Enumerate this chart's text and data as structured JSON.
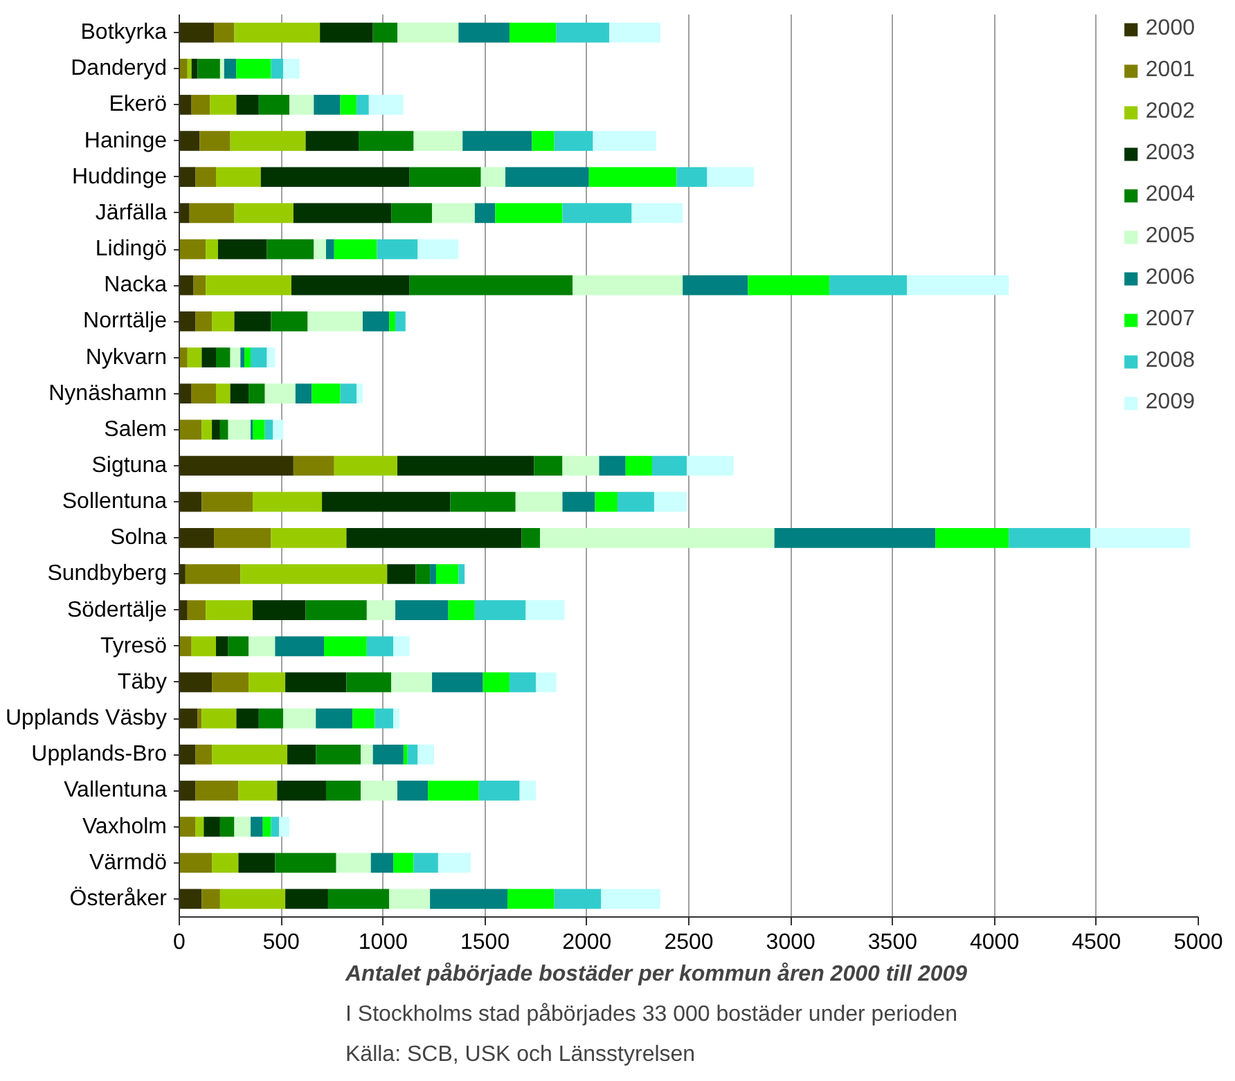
{
  "chart_data": {
    "type": "bar",
    "orientation": "horizontal",
    "stacked": true,
    "title": "Antalet påbörjade bostäder per kommun åren 2000 till 2009",
    "annotations": [
      "I Stockholms stad påbörjades 33 000 bostäder under perioden",
      "Källa: SCB, USK och Länsstyrelsen"
    ],
    "categories": [
      "Botkyrka",
      "Danderyd",
      "Ekerö",
      "Haninge",
      "Huddinge",
      "Järfälla",
      "Lidingö",
      "Nacka",
      "Norrtälje",
      "Nykvarn",
      "Nynäshamn",
      "Salem",
      "Sigtuna",
      "Sollentuna",
      "Solna",
      "Sundbyberg",
      "Södertälje",
      "Tyresö",
      "Täby",
      "Upplands Väsby",
      "Upplands-Bro",
      "Vallentuna",
      "Vaxholm",
      "Värmdö",
      "Österåker"
    ],
    "xlim": [
      0,
      5000
    ],
    "xticks": [
      0,
      500,
      1000,
      1500,
      2000,
      2500,
      3000,
      3500,
      4000,
      4500,
      5000
    ],
    "grid": "x",
    "legend": "top right",
    "series": [
      {
        "name": "2000",
        "color": "#333300",
        "values": [
          170,
          0,
          60,
          100,
          80,
          50,
          0,
          70,
          80,
          0,
          60,
          0,
          560,
          110,
          170,
          30,
          40,
          0,
          160,
          90,
          80,
          80,
          0,
          0,
          110
        ]
      },
      {
        "name": "2001",
        "color": "#808000",
        "values": [
          100,
          40,
          90,
          150,
          100,
          220,
          130,
          60,
          80,
          40,
          120,
          110,
          200,
          250,
          280,
          270,
          90,
          60,
          180,
          20,
          80,
          210,
          80,
          160,
          90
        ]
      },
      {
        "name": "2002",
        "color": "#99cc00",
        "values": [
          420,
          20,
          130,
          370,
          220,
          290,
          60,
          420,
          110,
          70,
          70,
          50,
          310,
          340,
          370,
          720,
          230,
          120,
          180,
          170,
          370,
          190,
          40,
          130,
          320
        ]
      },
      {
        "name": "2003",
        "color": "#003300",
        "values": [
          260,
          30,
          110,
          260,
          730,
          480,
          240,
          580,
          180,
          70,
          90,
          40,
          670,
          630,
          860,
          140,
          260,
          60,
          300,
          110,
          140,
          240,
          80,
          180,
          210
        ]
      },
      {
        "name": "2004",
        "color": "#008000",
        "values": [
          120,
          110,
          150,
          270,
          350,
          200,
          230,
          800,
          180,
          70,
          80,
          40,
          140,
          320,
          90,
          70,
          300,
          100,
          220,
          120,
          220,
          170,
          70,
          300,
          300
        ]
      },
      {
        "name": "2005",
        "color": "#ccffcc",
        "values": [
          300,
          20,
          120,
          240,
          120,
          210,
          60,
          540,
          270,
          50,
          150,
          110,
          180,
          230,
          1150,
          0,
          140,
          130,
          200,
          160,
          60,
          180,
          80,
          170,
          200
        ]
      },
      {
        "name": "2006",
        "color": "#008080",
        "values": [
          250,
          60,
          130,
          340,
          410,
          100,
          40,
          320,
          130,
          20,
          80,
          10,
          130,
          160,
          790,
          30,
          260,
          240,
          250,
          180,
          150,
          150,
          60,
          110,
          380
        ]
      },
      {
        "name": "2007",
        "color": "#00ff00",
        "values": [
          230,
          170,
          80,
          110,
          430,
          330,
          210,
          400,
          30,
          30,
          140,
          60,
          130,
          110,
          360,
          110,
          130,
          210,
          130,
          110,
          20,
          250,
          40,
          100,
          230
        ]
      },
      {
        "name": "2008",
        "color": "#33cccc",
        "values": [
          260,
          60,
          60,
          190,
          150,
          340,
          200,
          380,
          50,
          80,
          80,
          40,
          170,
          180,
          400,
          30,
          250,
          130,
          130,
          90,
          50,
          200,
          40,
          120,
          230
        ]
      },
      {
        "name": "2009",
        "color": "#ccffff",
        "values": [
          250,
          80,
          170,
          310,
          230,
          250,
          200,
          500,
          0,
          40,
          30,
          50,
          230,
          160,
          490,
          0,
          190,
          80,
          100,
          30,
          80,
          80,
          50,
          160,
          290
        ]
      }
    ]
  }
}
